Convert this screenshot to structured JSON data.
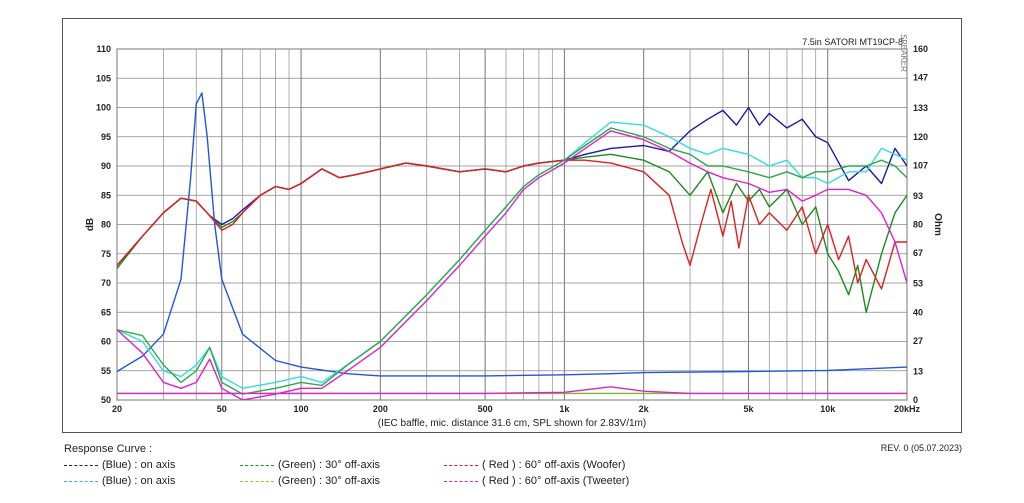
{
  "chart_data": {
    "type": "line",
    "title": "7.5in SATORI MT19CP-8",
    "xlabel": "(IEC baffle, mic. distance 31.6 cm, SPL shown for 2.83V/1m)",
    "ylabel": "dB",
    "y2label": "Ohm",
    "x_scale": "log",
    "xlim": [
      20,
      20000
    ],
    "ylim": [
      50,
      110
    ],
    "y2lim": [
      0,
      160
    ],
    "grid": true,
    "x_ticks": [
      {
        "value": 20,
        "label": "20"
      },
      {
        "value": 50,
        "label": "50"
      },
      {
        "value": 100,
        "label": "100"
      },
      {
        "value": 200,
        "label": "200"
      },
      {
        "value": 500,
        "label": "500"
      },
      {
        "value": 1000,
        "label": "1k"
      },
      {
        "value": 2000,
        "label": "2k"
      },
      {
        "value": 5000,
        "label": "5k"
      },
      {
        "value": 10000,
        "label": "10k"
      },
      {
        "value": 20000,
        "label": "20kHz"
      }
    ],
    "y_ticks": [
      50,
      55,
      60,
      65,
      70,
      75,
      80,
      85,
      90,
      95,
      100,
      105,
      110
    ],
    "y2_ticks": [
      {
        "value": 0,
        "label": "0"
      },
      {
        "value": 13,
        "label": "13"
      },
      {
        "value": 27,
        "label": "27"
      },
      {
        "value": 40,
        "label": "40"
      },
      {
        "value": 53,
        "label": "53"
      },
      {
        "value": 67,
        "label": "67"
      },
      {
        "value": 80,
        "label": "80"
      },
      {
        "value": 93,
        "label": "93"
      },
      {
        "value": 107,
        "label": "107"
      },
      {
        "value": 120,
        "label": "120"
      },
      {
        "value": 133,
        "label": "133"
      },
      {
        "value": 147,
        "label": "147"
      },
      {
        "value": 160,
        "label": "160"
      }
    ],
    "side_text": "SPEAKER",
    "series": [
      {
        "name": "(Blue) : on axis",
        "color": "#1a1aa8",
        "x": [
          20,
          25,
          30,
          35,
          40,
          45,
          50,
          55,
          60,
          70,
          80,
          90,
          100,
          120,
          140,
          160,
          180,
          200,
          250,
          300,
          400,
          500,
          600,
          700,
          800,
          1000,
          1200,
          1500,
          2000,
          2500,
          3000,
          3500,
          4000,
          4500,
          5000,
          5500,
          6000,
          7000,
          8000,
          9000,
          10000,
          12000,
          14000,
          16000,
          18000,
          20000
        ],
        "y": [
          73,
          78,
          82,
          84.5,
          84,
          81.5,
          80,
          81,
          82.5,
          85,
          86.5,
          86,
          87,
          89.5,
          88,
          88.5,
          89,
          89.5,
          90.5,
          90,
          89,
          89.5,
          89,
          90,
          90.5,
          91,
          92,
          93,
          93.5,
          92.5,
          96,
          98,
          99.5,
          97,
          100,
          97,
          99,
          96.5,
          98,
          95,
          94,
          87.5,
          90,
          87,
          93,
          90
        ]
      },
      {
        "name": "(Blue) : on axis",
        "color": "#2255dd",
        "axis": "right",
        "x": [
          20,
          25,
          30,
          35,
          38,
          40,
          42,
          44,
          47,
          50,
          60,
          80,
          100,
          150,
          200,
          300,
          500,
          1000,
          1500,
          2000,
          5000,
          10000,
          20000
        ],
        "y": [
          13,
          20,
          30,
          55,
          100,
          135,
          140,
          120,
          80,
          55,
          30,
          18,
          15,
          12,
          11,
          11,
          11,
          11.5,
          12,
          12.5,
          13,
          13.5,
          15
        ]
      },
      {
        "name": "(Green) : 30° off-axis",
        "color": "#1e8a1e",
        "x": [
          20,
          25,
          30,
          35,
          40,
          45,
          50,
          55,
          60,
          70,
          80,
          90,
          100,
          120,
          140,
          160,
          180,
          200,
          250,
          300,
          400,
          500,
          600,
          700,
          800,
          1000,
          1200,
          1500,
          2000,
          2500,
          3000,
          3500,
          4000,
          4500,
          5000,
          5500,
          6000,
          7000,
          8000,
          9000,
          10000,
          11000,
          12000,
          13000,
          14000,
          16000,
          18000,
          20000
        ],
        "y": [
          72.5,
          78,
          82,
          84.5,
          84,
          81.5,
          79.5,
          80.5,
          82,
          85,
          86.5,
          86,
          87,
          89.5,
          88,
          88.5,
          89,
          89.5,
          90.5,
          90,
          89,
          89.5,
          89,
          90,
          90.5,
          91,
          91.5,
          92,
          91,
          89,
          85,
          89,
          82,
          87,
          84,
          86,
          83,
          86,
          80,
          83,
          75,
          72,
          68,
          73,
          65,
          75,
          82,
          85
        ]
      },
      {
        "name": "(Green) : 30° off-axis",
        "color": "#7ab82a",
        "axis": "right",
        "x": [
          20,
          25,
          30,
          35,
          40,
          45,
          50,
          60,
          80,
          100,
          150,
          200,
          500,
          1000,
          2000,
          5000,
          10000,
          20000
        ],
        "y": [
          3,
          3,
          3,
          3,
          3,
          3,
          3,
          3,
          3,
          3,
          3,
          3,
          3,
          3,
          3,
          3,
          3,
          3
        ]
      },
      {
        "name": "( Red ) : 60° off-axis (Woofer)",
        "color": "#e02020",
        "x": [
          20,
          25,
          30,
          35,
          40,
          45,
          50,
          55,
          60,
          70,
          80,
          90,
          100,
          120,
          140,
          160,
          180,
          200,
          250,
          300,
          400,
          500,
          600,
          700,
          800,
          1000,
          1200,
          1500,
          2000,
          2500,
          2800,
          3000,
          3300,
          3600,
          4000,
          4300,
          4600,
          5000,
          5500,
          6000,
          7000,
          8000,
          9000,
          10000,
          11000,
          12000,
          13000,
          14000,
          16000,
          18000,
          20000
        ],
        "y": [
          73,
          78,
          82,
          84.5,
          84,
          81.5,
          79,
          80,
          82,
          85,
          86.5,
          86,
          87,
          89.5,
          88,
          88.5,
          89,
          89.5,
          90.5,
          90,
          89,
          89.5,
          89,
          90,
          90.5,
          91,
          91,
          90.5,
          89,
          85,
          77,
          73,
          80,
          86,
          78,
          84,
          76,
          85,
          80,
          82,
          79,
          83,
          75,
          80,
          74,
          78,
          70,
          74,
          69,
          77,
          77
        ]
      },
      {
        "name": "(Blue) : on axis",
        "color": "#33dddd",
        "x": [
          20,
          25,
          30,
          35,
          40,
          45,
          50,
          60,
          80,
          100,
          120,
          150,
          200,
          300,
          400,
          500,
          600,
          700,
          800,
          1000,
          1200,
          1500,
          2000,
          2500,
          3000,
          3500,
          4000,
          5000,
          6000,
          7000,
          8000,
          9000,
          10000,
          12000,
          14000,
          16000,
          18000,
          20000
        ],
        "y": [
          62,
          60,
          55,
          54,
          56,
          59,
          54,
          52,
          53,
          54,
          53,
          56,
          60,
          68,
          74,
          79,
          83,
          86.5,
          88.5,
          91,
          94,
          97.5,
          97,
          95,
          93,
          92,
          93,
          92,
          90,
          91,
          88,
          88,
          87,
          89,
          89,
          93,
          92,
          91
        ]
      },
      {
        "name": "(Green) : 30° off-axis",
        "color": "#2ea84a",
        "x": [
          20,
          25,
          30,
          35,
          40,
          45,
          50,
          60,
          80,
          100,
          120,
          150,
          200,
          300,
          400,
          500,
          600,
          700,
          800,
          1000,
          1200,
          1500,
          2000,
          2500,
          3000,
          3500,
          4000,
          5000,
          6000,
          7000,
          8000,
          9000,
          10000,
          12000,
          14000,
          16000,
          18000,
          20000
        ],
        "y": [
          62,
          61,
          56,
          53,
          55,
          59,
          53,
          51,
          52,
          53,
          52.5,
          56,
          60,
          68,
          74,
          79,
          83,
          86.5,
          88.5,
          91,
          93.5,
          96.5,
          95,
          93,
          92,
          90,
          90,
          89,
          88,
          89,
          88,
          89,
          89,
          90,
          90,
          91,
          90,
          88
        ]
      },
      {
        "name": "( Red ) : 60° off-axis (Tweeter)",
        "color": "#dd22cc",
        "x": [
          20,
          25,
          30,
          35,
          40,
          45,
          50,
          60,
          80,
          100,
          120,
          150,
          200,
          300,
          400,
          500,
          600,
          700,
          800,
          1000,
          1200,
          1500,
          2000,
          2500,
          3000,
          3500,
          4000,
          5000,
          6000,
          7000,
          8000,
          9000,
          10000,
          12000,
          14000,
          16000,
          18000,
          20000
        ],
        "y": [
          62,
          58,
          53,
          52,
          53,
          57,
          52,
          50,
          51,
          52,
          52,
          55,
          59,
          67,
          73,
          78,
          82,
          86,
          88,
          90.5,
          93,
          96,
          94.5,
          92.5,
          90.5,
          89,
          88,
          87,
          85.5,
          86,
          84,
          85,
          86,
          86,
          85,
          82,
          77,
          70
        ]
      },
      {
        "name": "( Red ) : 60° off-axis (Tweeter)",
        "color": "#dd22cc",
        "axis": "right",
        "x": [
          20,
          50,
          100,
          200,
          500,
          1000,
          1500,
          2000,
          3000,
          5000,
          10000,
          20000
        ],
        "y": [
          3,
          3,
          3,
          3,
          3,
          3.5,
          6,
          4,
          3,
          3,
          3,
          3
        ]
      }
    ]
  },
  "footer": {
    "title": "Response Curve :",
    "revision": "REV. 0 (05.07.2023)",
    "legend": [
      {
        "label": "(Blue)  : on axis",
        "color": "#1a1aa8"
      },
      {
        "label": "(Blue)  : on axis",
        "color": "#33aaee"
      },
      {
        "label": "(Green) : 30° off-axis",
        "color": "#1e8a1e"
      },
      {
        "label": "(Green) : 30° off-axis",
        "color": "#9ac02a"
      },
      {
        "label": "( Red ) : 60° off-axis (Woofer)",
        "color": "#e02020"
      },
      {
        "label": "( Red ) : 60° off-axis (Tweeter)",
        "color": "#dd22cc"
      }
    ]
  }
}
